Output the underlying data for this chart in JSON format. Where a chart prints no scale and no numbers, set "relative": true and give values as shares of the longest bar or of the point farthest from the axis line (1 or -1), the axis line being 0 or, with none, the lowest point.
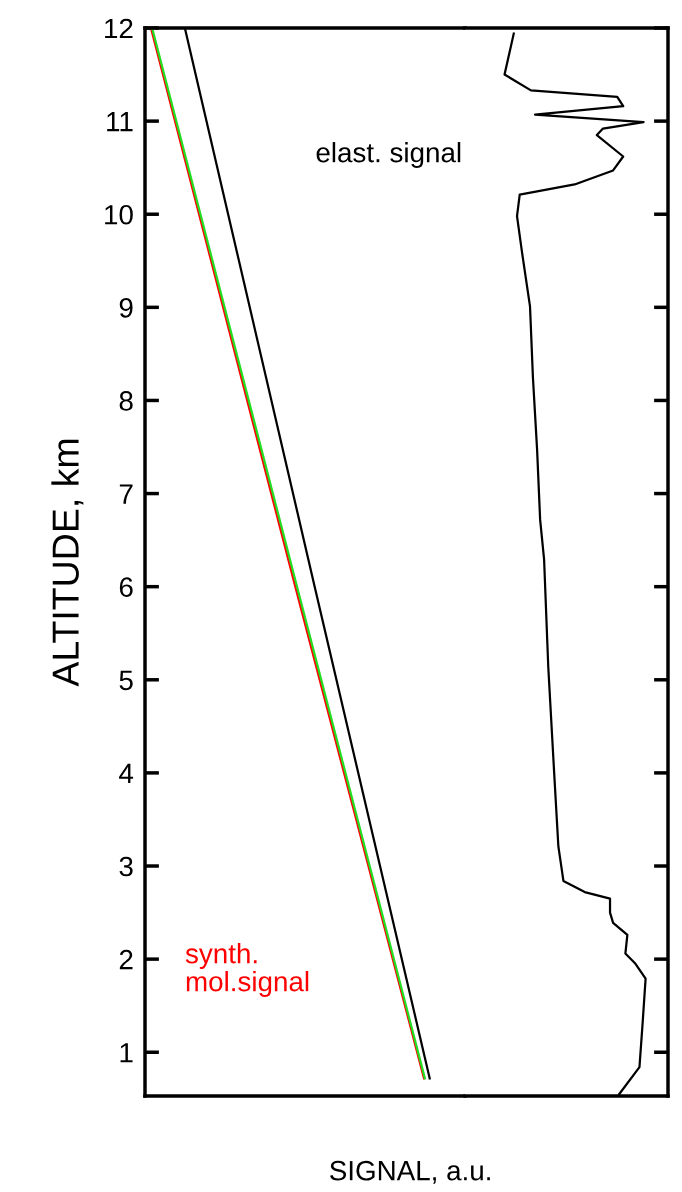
{
  "chart_data": [
    {
      "type": "line",
      "orientation": "horizontal",
      "xlabel": "SIGNAL, a.u.",
      "ylabel": "ALTITUDE, km",
      "relative": true,
      "ylim": [
        0.53,
        12
      ],
      "yticks": [
        1,
        2,
        3,
        4,
        5,
        6,
        7,
        8,
        9,
        10,
        11,
        12
      ],
      "tick_labels": "y",
      "grid": false,
      "legend": "bottom left",
      "series": [
        {
          "color": "#000000",
          "x": [
            12,
            6,
            0.72
          ],
          "values": [
            0.14,
            0.596,
            1
          ]
        },
        {
          "name": "synth.\nmol.signal",
          "color": "#ff0000",
          "x": [
            12,
            6,
            0.72
          ],
          "values": [
            0.021,
            0.528,
            0.98
          ]
        },
        {
          "color": "#22dd22",
          "x": [
            12,
            6,
            0.72
          ],
          "values": [
            0.025,
            0.534,
            0.983
          ]
        }
      ]
    },
    {
      "type": "line",
      "orientation": "horizontal",
      "relative": true,
      "ylim": [
        0.53,
        12
      ],
      "yticks": [
        1,
        2,
        3,
        4,
        5,
        6,
        7,
        8,
        9,
        10,
        11,
        12
      ],
      "tick_labels": false,
      "grid": false,
      "legend": false,
      "series": [
        {
          "name": "elast. signal",
          "color": "#000000",
          "x": [
            11.94,
            11.5,
            11.33,
            11.26,
            11.16,
            11.07,
            10.99,
            10.92,
            10.85,
            10.62,
            10.47,
            10.32,
            10.21,
            9.98,
            9.6,
            9.01,
            8.25,
            7.48,
            6.72,
            6.29,
            5.14,
            3.99,
            3.21,
            2.84,
            2.72,
            2.65,
            2.5,
            2.39,
            2.26,
            2.06,
            1.95,
            1.79,
            1.3,
            0.84,
            0.55
          ],
          "values": [
            0.27,
            0.219,
            0.365,
            0.843,
            0.876,
            0.388,
            0.989,
            0.764,
            0.73,
            0.876,
            0.82,
            0.607,
            0.303,
            0.288,
            0.315,
            0.36,
            0.376,
            0.399,
            0.416,
            0.438,
            0.461,
            0.494,
            0.517,
            0.545,
            0.663,
            0.803,
            0.803,
            0.82,
            0.899,
            0.888,
            0.944,
            1,
            0.983,
            0.966,
            0.854
          ]
        }
      ]
    }
  ]
}
